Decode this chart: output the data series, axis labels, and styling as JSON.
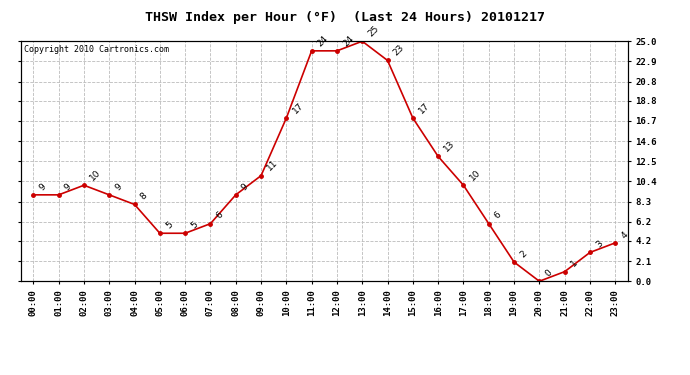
{
  "title": "THSW Index per Hour (°F)  (Last 24 Hours) 20101217",
  "copyright": "Copyright 2010 Cartronics.com",
  "hours": [
    "00:00",
    "01:00",
    "02:00",
    "03:00",
    "04:00",
    "05:00",
    "06:00",
    "07:00",
    "08:00",
    "09:00",
    "10:00",
    "11:00",
    "12:00",
    "13:00",
    "14:00",
    "15:00",
    "16:00",
    "17:00",
    "18:00",
    "19:00",
    "20:00",
    "21:00",
    "22:00",
    "23:00"
  ],
  "values": [
    9,
    9,
    10,
    9,
    8,
    5,
    5,
    6,
    9,
    11,
    17,
    24,
    24,
    25,
    23,
    17,
    13,
    10,
    6,
    2,
    0,
    1,
    3,
    4
  ],
  "yticks": [
    0.0,
    2.1,
    4.2,
    6.2,
    8.3,
    10.4,
    12.5,
    14.6,
    16.7,
    18.8,
    20.8,
    22.9,
    25.0
  ],
  "ylim": [
    0.0,
    25.0
  ],
  "line_color": "#cc0000",
  "marker_color": "#cc0000",
  "bg_color": "#ffffff",
  "grid_color": "#bbbbbb",
  "title_fontsize": 9.5,
  "copyright_fontsize": 6.0,
  "label_fontsize": 6.5,
  "data_label_fontsize": 6.5
}
